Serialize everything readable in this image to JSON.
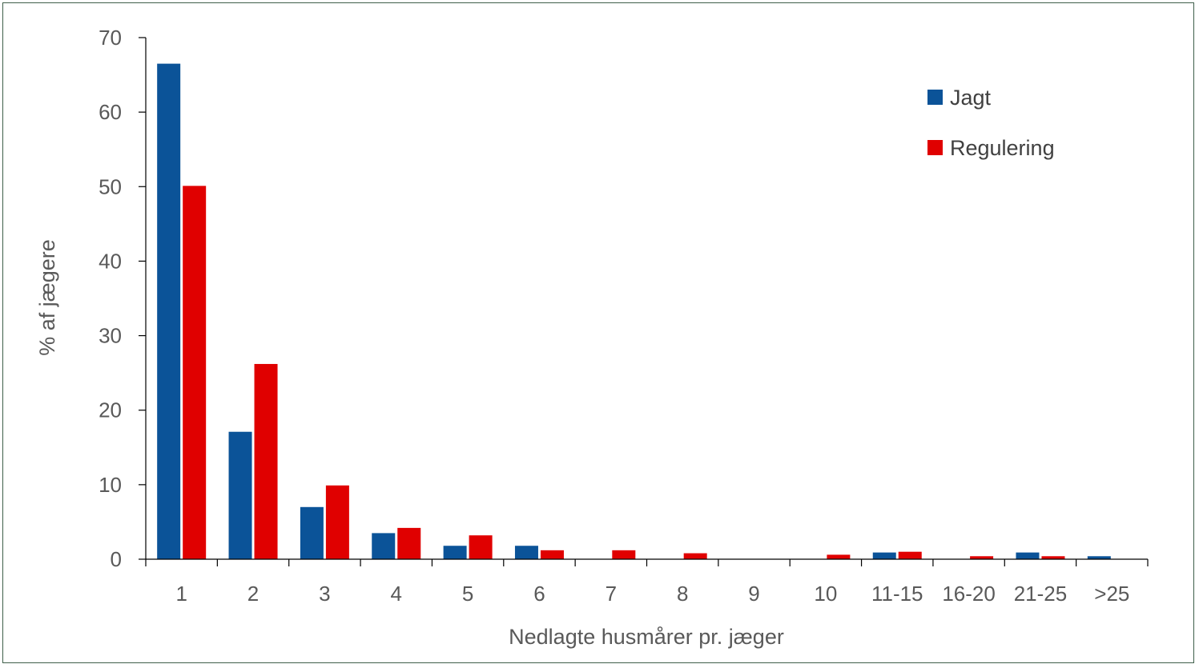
{
  "chart_data": {
    "type": "bar",
    "title": "",
    "xlabel": "Nedlagte husmårer pr. jæger",
    "ylabel": "% af jægere",
    "ylim": [
      0,
      70
    ],
    "yticks": [
      "0",
      "10",
      "20",
      "30",
      "40",
      "50",
      "60",
      "70"
    ],
    "categories": [
      "1",
      "2",
      "3",
      "4",
      "5",
      "6",
      "7",
      "8",
      "9",
      "10",
      "11-15",
      "16-20",
      "21-25",
      ">25"
    ],
    "series": [
      {
        "name": "Jagt",
        "color": "#0b5398",
        "values": [
          66.5,
          17.1,
          7.0,
          3.5,
          1.8,
          1.8,
          0,
          0,
          0,
          0,
          0.9,
          0,
          0.9,
          0.4
        ]
      },
      {
        "name": "Regulering",
        "color": "#e00000",
        "values": [
          50.1,
          26.2,
          9.9,
          4.2,
          3.2,
          1.2,
          1.2,
          0.8,
          0,
          0.6,
          1.0,
          0.4,
          0.4,
          0
        ]
      }
    ],
    "legend_position": "top-right",
    "grid": false
  }
}
